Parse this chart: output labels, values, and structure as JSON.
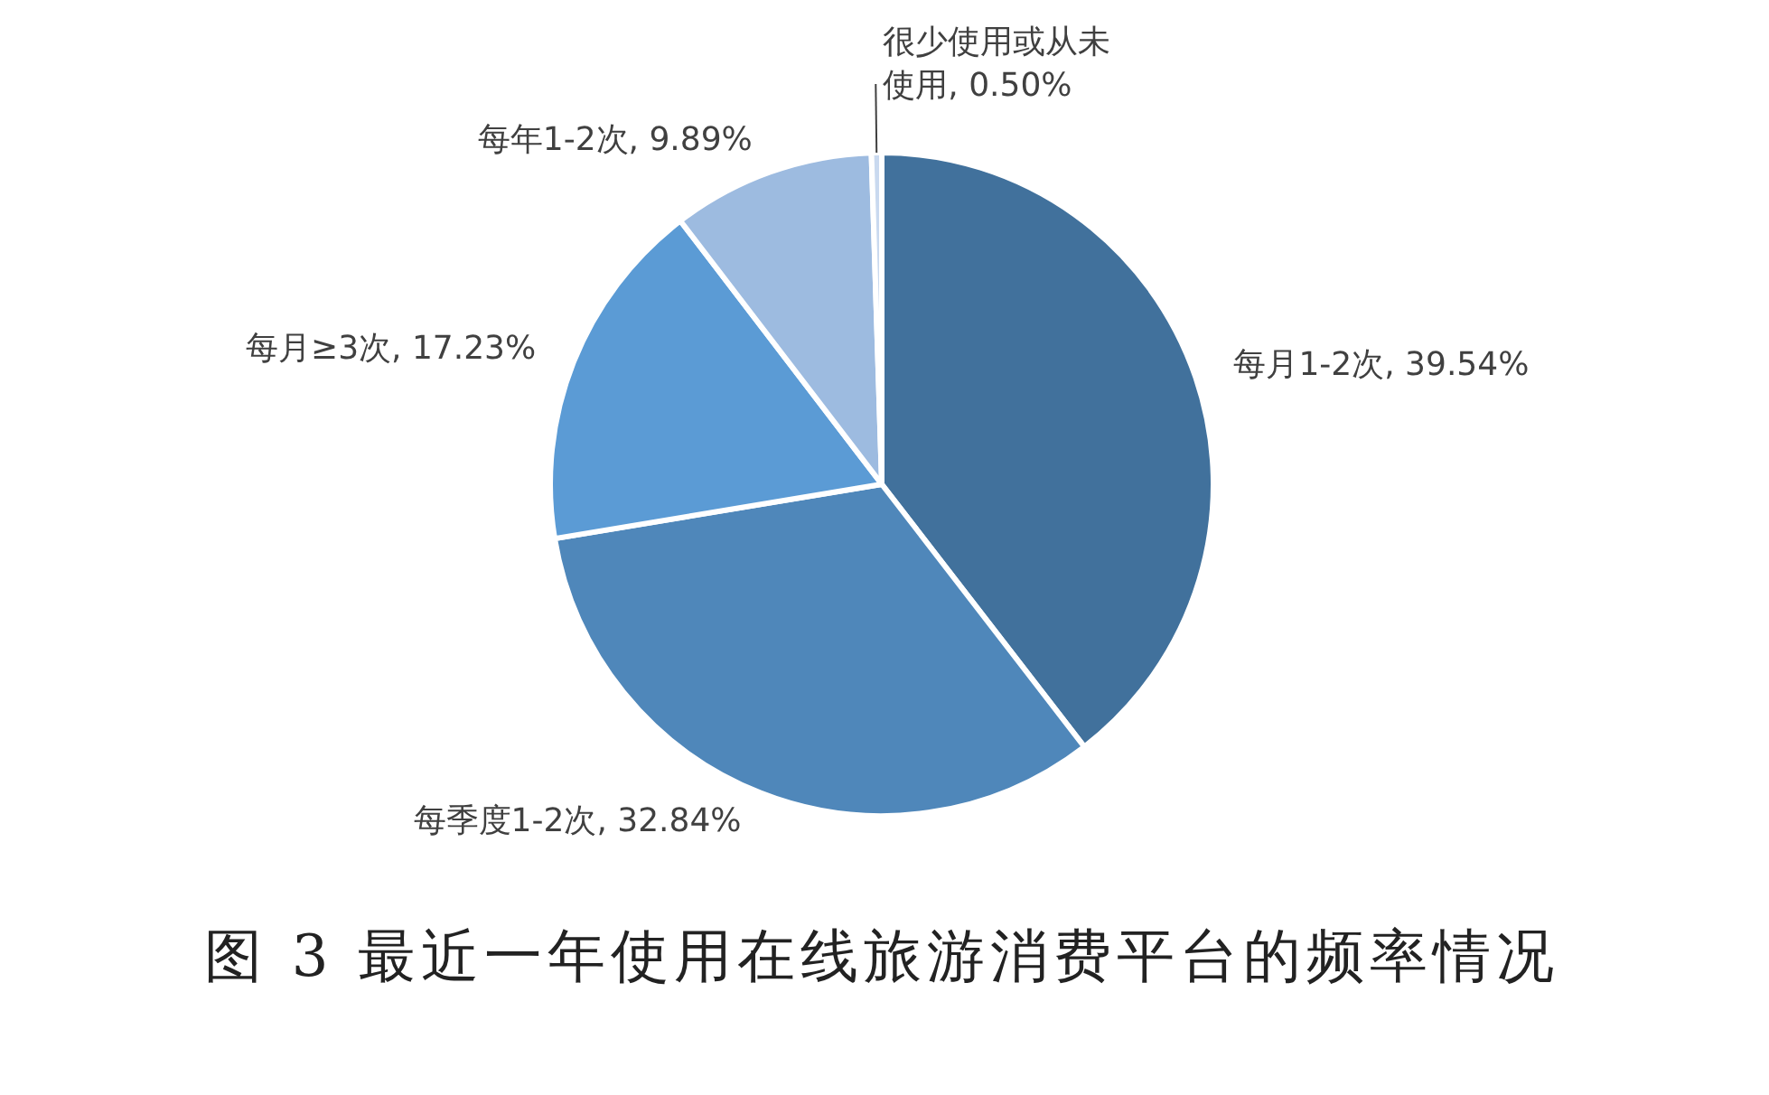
{
  "chart_data": {
    "type": "pie",
    "title": "图 3 最近一年使用在线旅游消费平台的频率情况",
    "categories": [
      "每月1-2次",
      "每季度1-2次",
      "每月≥3次",
      "每年1-2次",
      "很少使用或从未使用"
    ],
    "values": [
      39.54,
      32.84,
      17.23,
      9.89,
      0.5
    ],
    "value_labels": [
      "39.54%",
      "32.84%",
      "17.23%",
      "9.89%",
      "0.50%"
    ],
    "colors": [
      "#41719c",
      "#4f87ba",
      "#5b9bd5",
      "#9dbbe0",
      "#c9d9ef"
    ],
    "legend": false
  }
}
